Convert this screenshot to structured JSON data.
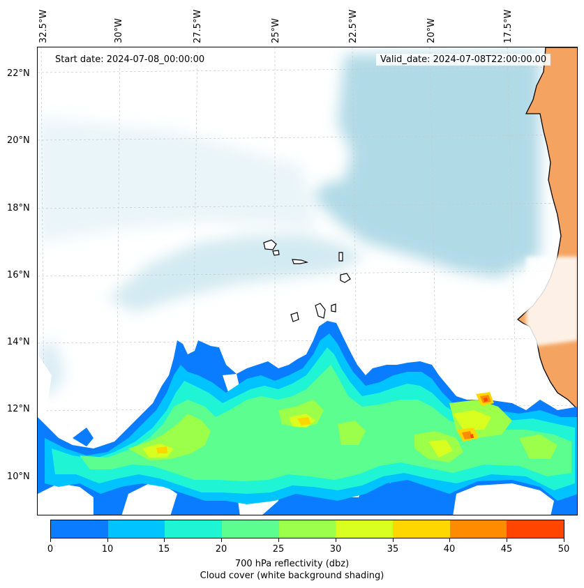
{
  "map": {
    "start_date": "Start date: 2024-07-08_00:00:00",
    "valid_date": "Valid_date: 2024-07-08T22:00:00.00",
    "lon_labels": [
      "32.5°W",
      "30°W",
      "27.5°W",
      "25°W",
      "22.5°W",
      "20°W",
      "17.5°W"
    ],
    "lat_labels": [
      "22°N",
      "20°N",
      "18°N",
      "16°N",
      "14°N",
      "12°N",
      "10°N"
    ],
    "land_color": "#f4a460",
    "cloud_color": "#add8e6"
  },
  "colorbar": {
    "ticks": [
      "0",
      "10",
      "15",
      "20",
      "25",
      "30",
      "35",
      "40",
      "45",
      "50"
    ],
    "colors": [
      "#0a7cff",
      "#00c3ff",
      "#1ff5d4",
      "#5cff8f",
      "#9cff4a",
      "#d8ff1f",
      "#ffd700",
      "#ff8c00",
      "#ff4500"
    ],
    "label": "700 hPa reflectivity (dbz)",
    "sublabel": "Cloud cover (white background shading)"
  }
}
